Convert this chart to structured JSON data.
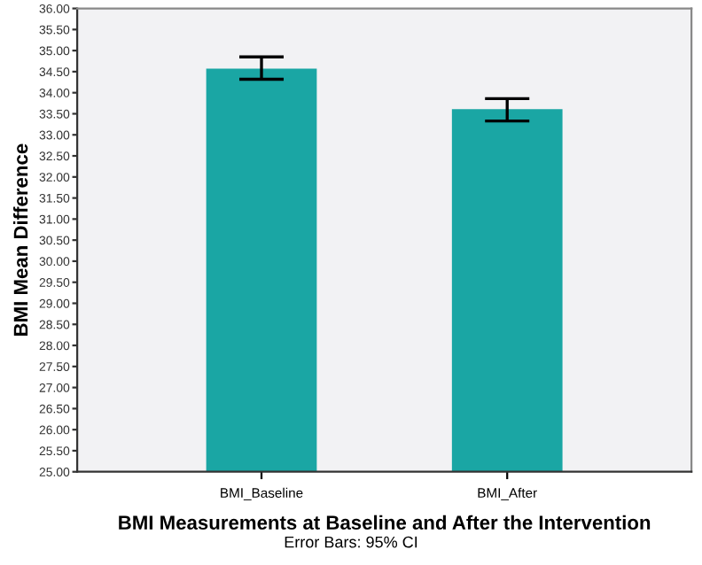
{
  "chart_data": {
    "type": "bar",
    "categories": [
      "BMI_Baseline",
      "BMI_After"
    ],
    "values": [
      34.57,
      33.61
    ],
    "errors": [
      [
        34.32,
        34.85
      ],
      [
        33.33,
        33.86
      ]
    ],
    "color": "#1aa6a4",
    "xlabel": "BMI Measurements at Baseline and After the Intervention",
    "ylabel": "BMI Mean Difference",
    "ylim": [
      25,
      36
    ],
    "yticks": [
      {
        "value": 25,
        "label": "25.00"
      },
      {
        "value": 25.5,
        "label": "25.50"
      },
      {
        "value": 26,
        "label": "26.00"
      },
      {
        "value": 26.5,
        "label": "26.50"
      },
      {
        "value": 27,
        "label": "27.00"
      },
      {
        "value": 27.5,
        "label": "27.50"
      },
      {
        "value": 28,
        "label": "28.00"
      },
      {
        "value": 28.5,
        "label": "28.50"
      },
      {
        "value": 29,
        "label": "29.00"
      },
      {
        "value": 29.5,
        "label": "29.50"
      },
      {
        "value": 30,
        "label": "30.00"
      },
      {
        "value": 30.5,
        "label": "30.50"
      },
      {
        "value": 31,
        "label": "31.00"
      },
      {
        "value": 31.5,
        "label": "31.50"
      },
      {
        "value": 32,
        "label": "32.00"
      },
      {
        "value": 32.5,
        "label": "32.50"
      },
      {
        "value": 33,
        "label": "33.00"
      },
      {
        "value": 33.5,
        "label": "33.50"
      },
      {
        "value": 34,
        "label": "34.00"
      },
      {
        "value": 34.5,
        "label": "34.50"
      },
      {
        "value": 35,
        "label": "35.00"
      },
      {
        "value": 35.5,
        "label": "35.50"
      },
      {
        "value": 36,
        "label": "36.00"
      }
    ],
    "grid": false,
    "annotations": [
      "Error Bars: 95% CI"
    ]
  }
}
